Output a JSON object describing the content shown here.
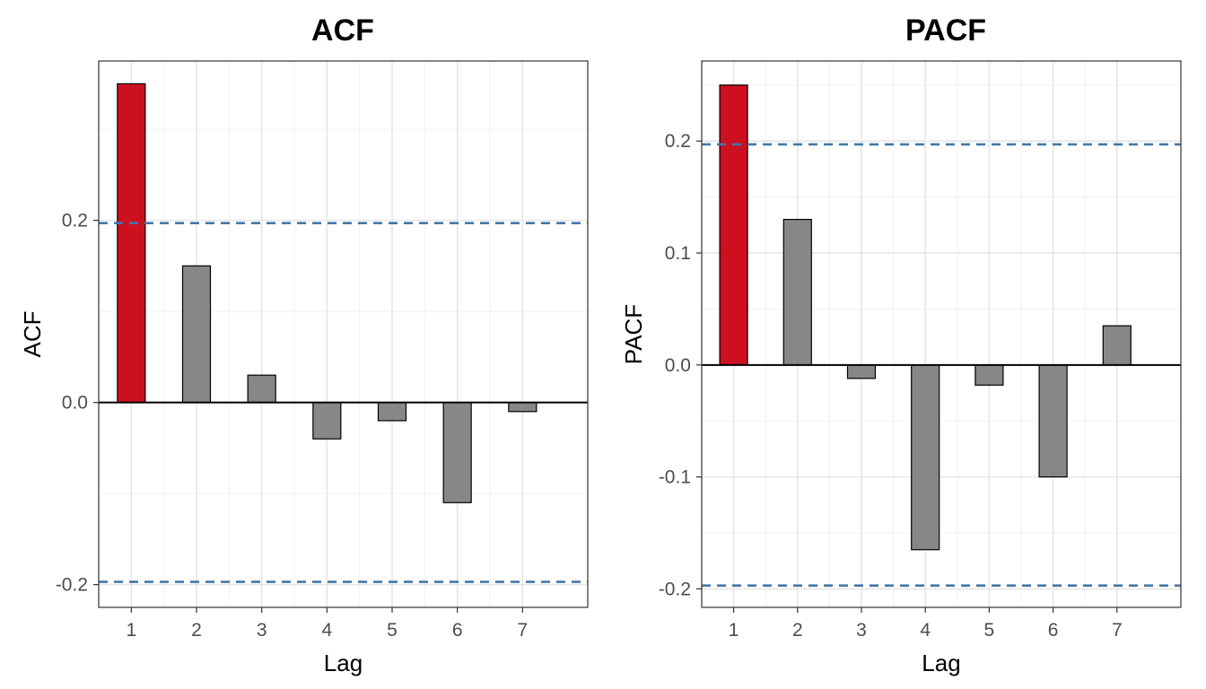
{
  "chart_data": [
    {
      "type": "bar",
      "title": "ACF",
      "xlabel": "Lag",
      "ylabel": "ACF",
      "categories": [
        "1",
        "2",
        "3",
        "4",
        "5",
        "6",
        "7"
      ],
      "values": [
        0.35,
        0.15,
        0.03,
        -0.04,
        -0.02,
        -0.11,
        -0.01
      ],
      "highlight_lags": [
        "1"
      ],
      "highlight_color": "#cc1020",
      "bar_color": "#878787",
      "confidence_bounds": [
        0.197,
        -0.197
      ],
      "confidence_color": "#4477aa",
      "ylim": [
        -0.225,
        0.375
      ],
      "yticks": [
        -0.2,
        0.0,
        0.2
      ],
      "ytick_labels": [
        "-0.2",
        "0.0",
        "0.2"
      ],
      "yminor": [
        -0.1,
        0.1,
        0.3
      ],
      "grid": true
    },
    {
      "type": "bar",
      "title": "PACF",
      "xlabel": "Lag",
      "ylabel": "PACF",
      "categories": [
        "1",
        "2",
        "3",
        "4",
        "5",
        "6",
        "7"
      ],
      "values": [
        0.25,
        0.13,
        -0.012,
        -0.165,
        -0.018,
        -0.1,
        0.035
      ],
      "highlight_lags": [
        "1"
      ],
      "highlight_color": "#cc1020",
      "bar_color": "#878787",
      "confidence_bounds": [
        0.197,
        -0.197
      ],
      "confidence_color": "#4477aa",
      "ylim": [
        -0.2165,
        0.2715
      ],
      "yticks": [
        -0.2,
        -0.1,
        0.0,
        0.1,
        0.2
      ],
      "ytick_labels": [
        "-0.2",
        "-0.1",
        "0.0",
        "0.1",
        "0.2"
      ],
      "yminor": [
        -0.15,
        -0.05,
        0.05,
        0.15,
        0.25
      ],
      "grid": true
    }
  ]
}
